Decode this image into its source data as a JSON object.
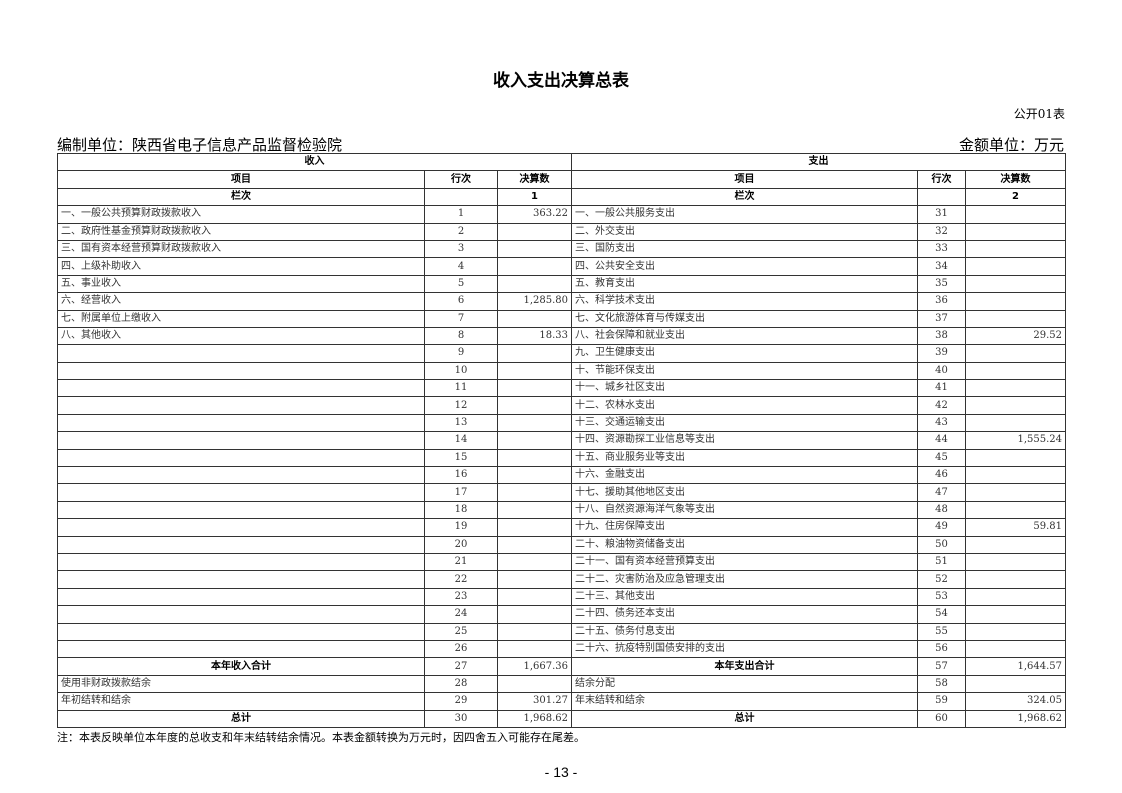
{
  "title": "收入支出决算总表",
  "form_no": "公开01表",
  "unit_name": "编制单位：陕西省电子信息产品监督检验院",
  "amount_unit": "金额单位：万元",
  "headers": {
    "income": "收入",
    "expense": "支出",
    "item": "项目",
    "line": "行次",
    "amount": "决算数",
    "column_no": "栏次",
    "income_col": "1",
    "expense_col": "2"
  },
  "rows": [
    {
      "li": "一、一般公共预算财政拨款收入",
      "ln": "1",
      "la": "363.22",
      "ri": "一、一般公共服务支出",
      "rn": "31",
      "ra": ""
    },
    {
      "li": "二、政府性基金预算财政拨款收入",
      "ln": "2",
      "la": "",
      "ri": "二、外交支出",
      "rn": "32",
      "ra": ""
    },
    {
      "li": "三、国有资本经营预算财政拨款收入",
      "ln": "3",
      "la": "",
      "ri": "三、国防支出",
      "rn": "33",
      "ra": ""
    },
    {
      "li": "四、上级补助收入",
      "ln": "4",
      "la": "",
      "ri": "四、公共安全支出",
      "rn": "34",
      "ra": ""
    },
    {
      "li": "五、事业收入",
      "ln": "5",
      "la": "",
      "ri": "五、教育支出",
      "rn": "35",
      "ra": ""
    },
    {
      "li": "六、经营收入",
      "ln": "6",
      "la": "1,285.80",
      "ri": "六、科学技术支出",
      "rn": "36",
      "ra": ""
    },
    {
      "li": "七、附属单位上缴收入",
      "ln": "7",
      "la": "",
      "ri": "七、文化旅游体育与传媒支出",
      "rn": "37",
      "ra": ""
    },
    {
      "li": "八、其他收入",
      "ln": "8",
      "la": "18.33",
      "ri": "八、社会保障和就业支出",
      "rn": "38",
      "ra": "29.52"
    },
    {
      "li": "",
      "ln": "9",
      "la": "",
      "ri": "九、卫生健康支出",
      "rn": "39",
      "ra": ""
    },
    {
      "li": "",
      "ln": "10",
      "la": "",
      "ri": "十、节能环保支出",
      "rn": "40",
      "ra": ""
    },
    {
      "li": "",
      "ln": "11",
      "la": "",
      "ri": "十一、城乡社区支出",
      "rn": "41",
      "ra": ""
    },
    {
      "li": "",
      "ln": "12",
      "la": "",
      "ri": "十二、农林水支出",
      "rn": "42",
      "ra": ""
    },
    {
      "li": "",
      "ln": "13",
      "la": "",
      "ri": "十三、交通运输支出",
      "rn": "43",
      "ra": ""
    },
    {
      "li": "",
      "ln": "14",
      "la": "",
      "ri": "十四、资源勘探工业信息等支出",
      "rn": "44",
      "ra": "1,555.24"
    },
    {
      "li": "",
      "ln": "15",
      "la": "",
      "ri": "十五、商业服务业等支出",
      "rn": "45",
      "ra": ""
    },
    {
      "li": "",
      "ln": "16",
      "la": "",
      "ri": "十六、金融支出",
      "rn": "46",
      "ra": ""
    },
    {
      "li": "",
      "ln": "17",
      "la": "",
      "ri": "十七、援助其他地区支出",
      "rn": "47",
      "ra": ""
    },
    {
      "li": "",
      "ln": "18",
      "la": "",
      "ri": "十八、自然资源海洋气象等支出",
      "rn": "48",
      "ra": ""
    },
    {
      "li": "",
      "ln": "19",
      "la": "",
      "ri": "十九、住房保障支出",
      "rn": "49",
      "ra": "59.81"
    },
    {
      "li": "",
      "ln": "20",
      "la": "",
      "ri": "二十、粮油物资储备支出",
      "rn": "50",
      "ra": ""
    },
    {
      "li": "",
      "ln": "21",
      "la": "",
      "ri": "二十一、国有资本经营预算支出",
      "rn": "51",
      "ra": ""
    },
    {
      "li": "",
      "ln": "22",
      "la": "",
      "ri": "二十二、灾害防治及应急管理支出",
      "rn": "52",
      "ra": ""
    },
    {
      "li": "",
      "ln": "23",
      "la": "",
      "ri": "二十三、其他支出",
      "rn": "53",
      "ra": ""
    },
    {
      "li": "",
      "ln": "24",
      "la": "",
      "ri": "二十四、债务还本支出",
      "rn": "54",
      "ra": ""
    },
    {
      "li": "",
      "ln": "25",
      "la": "",
      "ri": "二十五、债务付息支出",
      "rn": "55",
      "ra": ""
    },
    {
      "li": "",
      "ln": "26",
      "la": "",
      "ri": "二十六、抗疫特别国债安排的支出",
      "rn": "56",
      "ra": ""
    },
    {
      "li": "本年收入合计",
      "ln": "27",
      "la": "1,667.36",
      "ri": "本年支出合计",
      "rn": "57",
      "ra": "1,644.57",
      "bold": true
    },
    {
      "li": "使用非财政拨款结余",
      "ln": "28",
      "la": "",
      "ri": "结余分配",
      "rn": "58",
      "ra": ""
    },
    {
      "li": "年初结转和结余",
      "ln": "29",
      "la": "301.27",
      "ri": "年末结转和结余",
      "rn": "59",
      "ra": "324.05"
    },
    {
      "li": "总计",
      "ln": "30",
      "la": "1,968.62",
      "ri": "总计",
      "rn": "60",
      "ra": "1,968.62",
      "bold": true
    }
  ],
  "note": "注：本表反映单位本年度的总收支和年末结转结余情况。本表金额转换为万元时，因四舍五入可能存在尾差。",
  "page_number": "- 13 -"
}
